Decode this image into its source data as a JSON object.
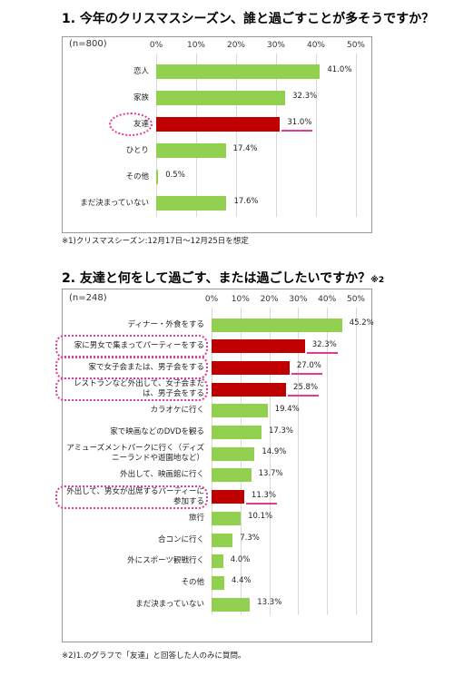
{
  "chart_data": [
    {
      "type": "bar",
      "orientation": "horizontal",
      "title": "1. 今年のクリスマスシーズン、誰と過ごすことが多そうですか？",
      "sample_label": "(n=800)",
      "categories": [
        "恋人",
        "家族",
        "友達",
        "ひとり",
        "その他",
        "まだ決まっていない"
      ],
      "values": [
        41.0,
        32.3,
        31.0,
        17.4,
        0.5,
        17.6
      ],
      "value_labels": [
        "41.0%",
        "32.3%",
        "31.0%",
        "17.4%",
        "0.5%",
        "17.6%"
      ],
      "colors": [
        "#92d050",
        "#92d050",
        "#c00000",
        "#92d050",
        "#92d050",
        "#92d050"
      ],
      "highlight_color": "#e6398f",
      "xlim": [
        0,
        50
      ],
      "xticks": [
        {
          "value": 0,
          "label": "0%"
        },
        {
          "value": 10,
          "label": "10%"
        },
        {
          "value": 20,
          "label": "20%"
        },
        {
          "value": 30,
          "label": "30%"
        },
        {
          "value": 40,
          "label": "40%"
        },
        {
          "value": 50,
          "label": "50%"
        }
      ],
      "grid": true,
      "footnote": "※1)クリスマスシーズン:12月17日～12月25日を想定"
    },
    {
      "type": "bar",
      "orientation": "horizontal",
      "title": "2. 友達と何をして過ごす、または過ごしたいですか？",
      "title_note": "※2",
      "sample_label": "(n=248)",
      "categories": [
        "ディナー・外食をする",
        "家に男女で集まってパーティーをする",
        "家で女子会または、男子会をする",
        "レストランなど外出して、女子会または、男子会をする",
        "カラオケに行く",
        "家で映画などのDVDを観る",
        "アミューズメントパークに行く（ディズニーランドや遊園地など）",
        "外出して、映画館に行く",
        "外出して、男女が出席するパーティーに参加する",
        "旅行",
        "合コンに行く",
        "外にスポーツ観戦行く",
        "その他",
        "まだ決まっていない"
      ],
      "values": [
        45.2,
        32.3,
        27.0,
        25.8,
        19.4,
        17.3,
        14.9,
        13.7,
        11.3,
        10.1,
        7.3,
        4.0,
        4.4,
        13.3
      ],
      "value_labels": [
        "45.2%",
        "32.3%",
        "27.0%",
        "25.8%",
        "19.4%",
        "17.3%",
        "14.9%",
        "13.7%",
        "11.3%",
        "10.1%",
        "7.3%",
        "4.0%",
        "4.4%",
        "13.3%"
      ],
      "colors": [
        "#92d050",
        "#c00000",
        "#c00000",
        "#c00000",
        "#92d050",
        "#92d050",
        "#92d050",
        "#92d050",
        "#c00000",
        "#92d050",
        "#92d050",
        "#92d050",
        "#92d050",
        "#92d050"
      ],
      "highlight_color": "#e6398f",
      "xlim": [
        0,
        50
      ],
      "xticks": [
        {
          "value": 0,
          "label": "0%"
        },
        {
          "value": 10,
          "label": "10%"
        },
        {
          "value": 20,
          "label": "20%"
        },
        {
          "value": 30,
          "label": "30%"
        },
        {
          "value": 40,
          "label": "40%"
        },
        {
          "value": 50,
          "label": "50%"
        }
      ],
      "grid": true,
      "footnote": "※2)1.のグラフで「友達」と回答した人のみに質問。"
    }
  ]
}
